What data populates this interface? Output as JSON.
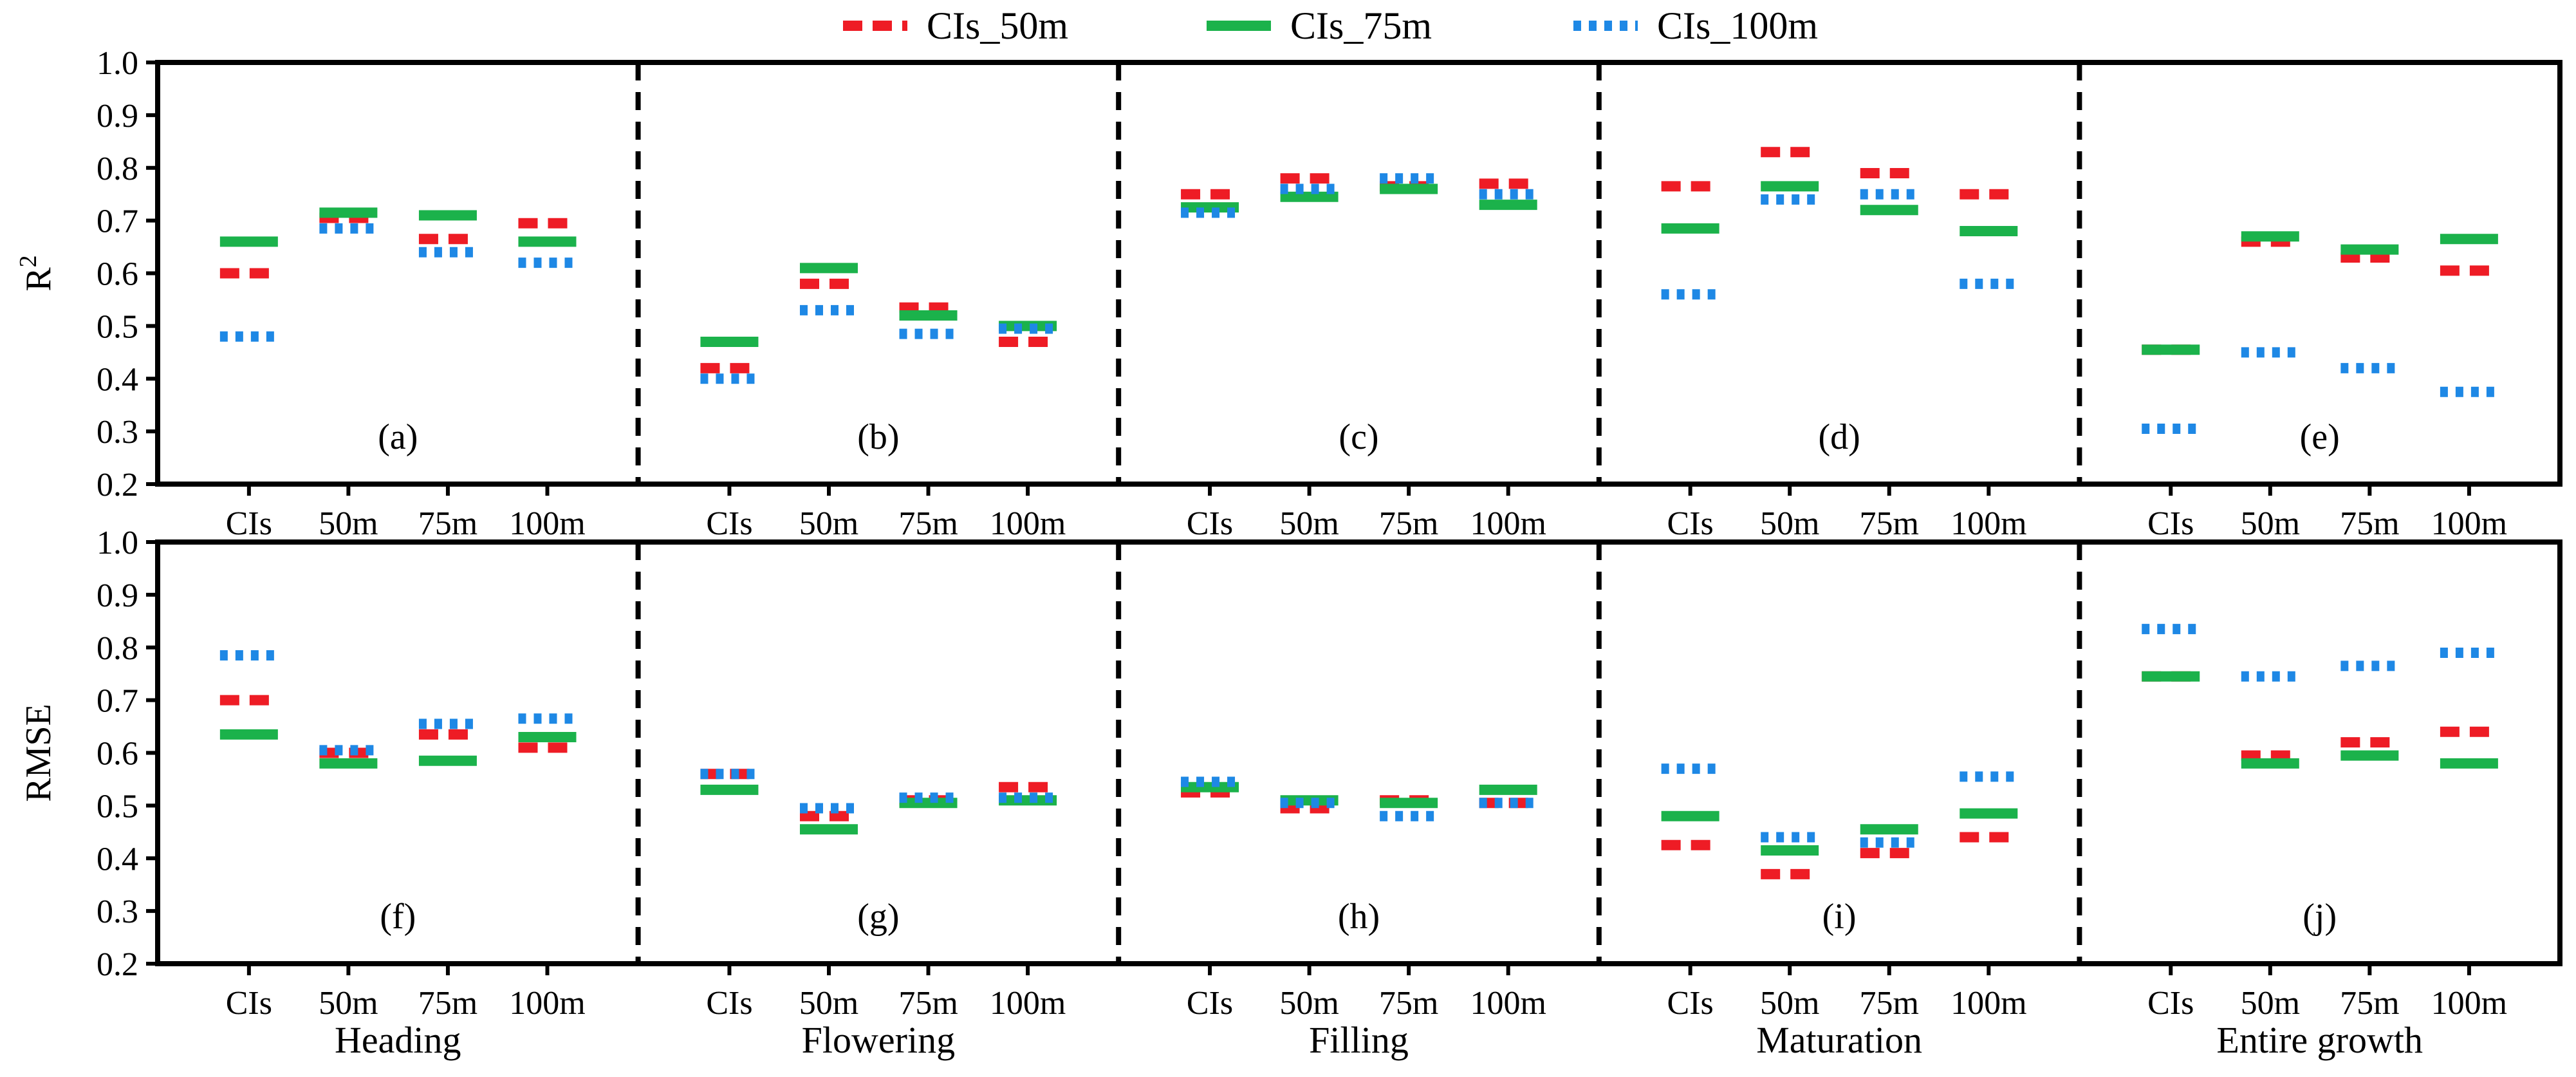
{
  "legend": [
    {
      "name": "CIs_50m",
      "color": "#ee1c25",
      "style": "dashed"
    },
    {
      "name": "CIs_75m",
      "color": "#1bb24b",
      "style": "solid"
    },
    {
      "name": "CIs_100m",
      "color": "#1e88e5",
      "style": "dotted"
    }
  ],
  "chart_data": {
    "type": "scatter",
    "categories": [
      "CIs",
      "50m",
      "75m",
      "100m"
    ],
    "stages": [
      "Heading",
      "Flowering",
      "Filling",
      "Maturation",
      "Entire growth"
    ],
    "yticks": [
      "0.2",
      "0.3",
      "0.4",
      "0.5",
      "0.6",
      "0.7",
      "0.8",
      "0.9",
      "1.0"
    ],
    "rows": [
      {
        "ylabel": "R",
        "ylabel_sup": "2",
        "ylim": [
          0.2,
          1.0
        ],
        "panels": [
          {
            "label": "(a)",
            "series": {
              "CIs_50m": [
                0.6,
                0.705,
                0.665,
                0.695
              ],
              "CIs_75m": [
                0.66,
                0.715,
                0.71,
                0.66
              ],
              "CIs_100m": [
                0.48,
                0.685,
                0.64,
                0.62
              ]
            }
          },
          {
            "label": "(b)",
            "series": {
              "CIs_50m": [
                0.42,
                0.58,
                0.535,
                0.47
              ],
              "CIs_75m": [
                0.47,
                0.61,
                0.52,
                0.5
              ],
              "CIs_100m": [
                0.4,
                0.53,
                0.485,
                0.495
              ]
            }
          },
          {
            "label": "(c)",
            "series": {
              "CIs_50m": [
                0.75,
                0.78,
                0.765,
                0.77
              ],
              "CIs_75m": [
                0.725,
                0.745,
                0.76,
                0.73
              ],
              "CIs_100m": [
                0.715,
                0.76,
                0.78,
                0.75
              ]
            }
          },
          {
            "label": "(d)",
            "series": {
              "CIs_50m": [
                0.765,
                0.83,
                0.79,
                0.75
              ],
              "CIs_75m": [
                0.685,
                0.765,
                0.72,
                0.68
              ],
              "CIs_100m": [
                0.56,
                0.74,
                0.75,
                0.58
              ]
            }
          },
          {
            "label": "(e)",
            "series": {
              "CIs_50m": [
                0.455,
                0.66,
                0.63,
                0.605
              ],
              "CIs_75m": [
                0.455,
                0.67,
                0.645,
                0.665
              ],
              "CIs_100m": [
                0.305,
                0.45,
                0.42,
                0.375
              ]
            }
          }
        ]
      },
      {
        "ylabel": "RMSE",
        "ylabel_sup": "",
        "ylim": [
          0.2,
          1.0
        ],
        "panels": [
          {
            "label": "(f)",
            "series": {
              "CIs_50m": [
                0.7,
                0.6,
                0.635,
                0.61
              ],
              "CIs_75m": [
                0.635,
                0.58,
                0.585,
                0.63
              ],
              "CIs_100m": [
                0.785,
                0.605,
                0.655,
                0.665
              ]
            }
          },
          {
            "label": "(g)",
            "series": {
              "CIs_50m": [
                0.56,
                0.48,
                0.51,
                0.535
              ],
              "CIs_75m": [
                0.53,
                0.455,
                0.505,
                0.51
              ],
              "CIs_100m": [
                0.56,
                0.495,
                0.515,
                0.515
              ]
            }
          },
          {
            "label": "(h)",
            "series": {
              "CIs_50m": [
                0.525,
                0.495,
                0.51,
                0.505
              ],
              "CIs_75m": [
                0.535,
                0.51,
                0.505,
                0.53
              ],
              "CIs_100m": [
                0.545,
                0.505,
                0.48,
                0.505
              ]
            }
          },
          {
            "label": "(i)",
            "series": {
              "CIs_50m": [
                0.425,
                0.37,
                0.41,
                0.44
              ],
              "CIs_75m": [
                0.48,
                0.415,
                0.455,
                0.485
              ],
              "CIs_100m": [
                0.57,
                0.44,
                0.43,
                0.555
              ]
            }
          },
          {
            "label": "(j)",
            "series": {
              "CIs_50m": [
                0.745,
                0.595,
                0.62,
                0.64
              ],
              "CIs_75m": [
                0.745,
                0.58,
                0.595,
                0.58
              ],
              "CIs_100m": [
                0.835,
                0.745,
                0.765,
                0.79
              ]
            }
          }
        ]
      }
    ]
  }
}
